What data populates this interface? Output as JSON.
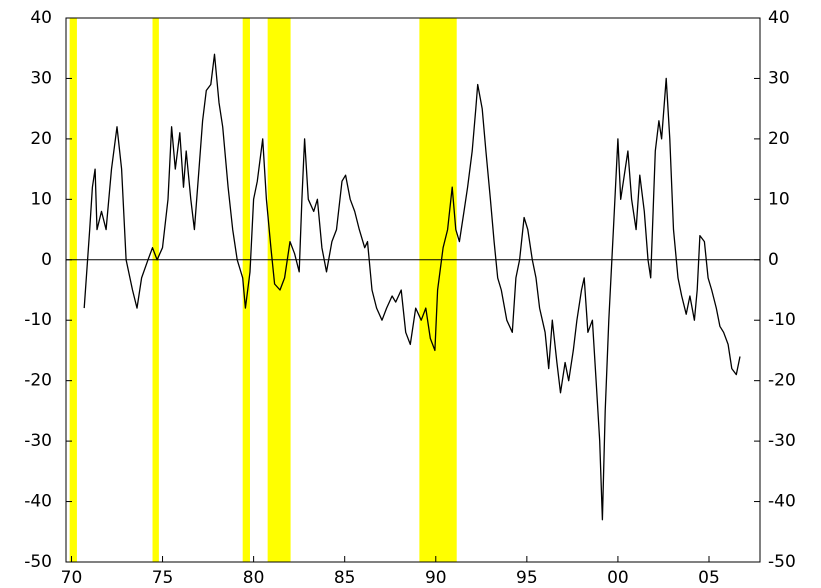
{
  "chart_data": {
    "type": "line",
    "x": [
      1970.7,
      1971.0,
      1971.15,
      1971.3,
      1971.4,
      1971.65,
      1971.9,
      1972.2,
      1972.5,
      1972.75,
      1973.0,
      1973.35,
      1973.6,
      1973.85,
      1974.2,
      1974.45,
      1974.7,
      1975.0,
      1975.3,
      1975.5,
      1975.7,
      1975.95,
      1976.15,
      1976.3,
      1976.55,
      1976.75,
      1977.0,
      1977.2,
      1977.4,
      1977.65,
      1977.85,
      1978.1,
      1978.3,
      1978.6,
      1978.85,
      1979.1,
      1979.4,
      1979.55,
      1979.8,
      1980.0,
      1980.2,
      1980.5,
      1980.7,
      1980.95,
      1981.15,
      1981.45,
      1981.7,
      1982.0,
      1982.25,
      1982.5,
      1982.65,
      1982.8,
      1983.0,
      1983.3,
      1983.5,
      1983.75,
      1984.0,
      1984.3,
      1984.55,
      1984.85,
      1985.05,
      1985.3,
      1985.55,
      1985.8,
      1986.1,
      1986.25,
      1986.5,
      1986.75,
      1987.05,
      1987.3,
      1987.6,
      1987.8,
      1988.1,
      1988.35,
      1988.6,
      1988.9,
      1989.2,
      1989.45,
      1989.7,
      1989.95,
      1990.1,
      1990.4,
      1990.65,
      1990.9,
      1991.1,
      1991.3,
      1991.55,
      1991.75,
      1992.0,
      1992.2,
      1992.3,
      1992.55,
      1992.75,
      1993.0,
      1993.2,
      1993.4,
      1993.6,
      1993.9,
      1994.2,
      1994.4,
      1994.6,
      1994.85,
      1995.05,
      1995.3,
      1995.5,
      1995.7,
      1996.0,
      1996.2,
      1996.4,
      1996.65,
      1996.85,
      1997.1,
      1997.3,
      1997.55,
      1997.75,
      1998.0,
      1998.15,
      1998.35,
      1998.6,
      1998.8,
      1999.0,
      1999.15,
      1999.3,
      1999.5,
      1999.75,
      2000.0,
      2000.15,
      2000.4,
      2000.55,
      2000.75,
      2001.0,
      2001.2,
      2001.45,
      2001.65,
      2001.8,
      2002.05,
      2002.25,
      2002.4,
      2002.65,
      2002.85,
      2003.05,
      2003.3,
      2003.5,
      2003.75,
      2003.95,
      2004.2,
      2004.35,
      2004.5,
      2004.75,
      2004.95,
      2005.15,
      2005.4,
      2005.6,
      2005.8,
      2006.05,
      2006.25,
      2006.5,
      2006.7
    ],
    "series": [
      {
        "color": "#000000",
        "values": [
          -8,
          5,
          12,
          15,
          5,
          8,
          5,
          15,
          22,
          15,
          0,
          -5,
          -8,
          -3,
          0,
          2,
          0,
          2,
          10,
          22,
          15,
          21,
          12,
          18,
          10,
          5,
          15,
          23,
          28,
          29,
          34,
          26,
          22,
          12,
          5,
          0,
          -3,
          -8,
          -2,
          10,
          13,
          20,
          10,
          2,
          -4,
          -5,
          -3,
          3,
          1,
          -2,
          10,
          20,
          10,
          8,
          10,
          2,
          -2,
          3,
          5,
          13,
          14,
          10,
          8,
          5,
          2,
          3,
          -5,
          -8,
          -10,
          -8,
          -6,
          -7,
          -5,
          -12,
          -14,
          -8,
          -10,
          -8,
          -13,
          -15,
          -5,
          2,
          5,
          12,
          5,
          3,
          8,
          12,
          18,
          25,
          29,
          25,
          18,
          10,
          3,
          -3,
          -5,
          -10,
          -12,
          -3,
          0,
          7,
          5,
          0,
          -3,
          -8,
          -12,
          -18,
          -10,
          -17,
          -22,
          -17,
          -20,
          -15,
          -10,
          -5,
          -3,
          -12,
          -10,
          -20,
          -30,
          -43,
          -25,
          -10,
          5,
          20,
          10,
          15,
          18,
          10,
          5,
          14,
          8,
          0,
          -3,
          18,
          23,
          20,
          30,
          20,
          5,
          -3,
          -6,
          -9,
          -6,
          -10,
          -5,
          4,
          3,
          -3,
          -5,
          -8,
          -11,
          -12,
          -14,
          -18,
          -19,
          -16
        ]
      }
    ],
    "shaded_periods": [
      [
        1969.9,
        1970.3
      ],
      [
        1974.45,
        1974.8
      ],
      [
        1979.4,
        1979.8
      ],
      [
        1980.77,
        1982.03
      ],
      [
        1989.1,
        1991.15
      ]
    ],
    "shade_color": "#ffff00",
    "xlim": [
      1969.7,
      2007.8
    ],
    "xticks": [
      {
        "value": 1970,
        "label": "70"
      },
      {
        "value": 1975,
        "label": "75"
      },
      {
        "value": 1980,
        "label": "80"
      },
      {
        "value": 1985,
        "label": "85"
      },
      {
        "value": 1990,
        "label": "90"
      },
      {
        "value": 1995,
        "label": "95"
      },
      {
        "value": 2000,
        "label": "00"
      },
      {
        "value": 2005,
        "label": "05"
      }
    ],
    "ylim": [
      -50,
      40
    ],
    "yticks": [
      -50,
      -40,
      -30,
      -20,
      -10,
      0,
      10,
      20,
      30,
      40
    ],
    "y2lim": [
      -50,
      40
    ],
    "y2ticks": [
      -50,
      -40,
      -30,
      -20,
      -10,
      0,
      10,
      20,
      30,
      40
    ],
    "zero_line": true
  }
}
